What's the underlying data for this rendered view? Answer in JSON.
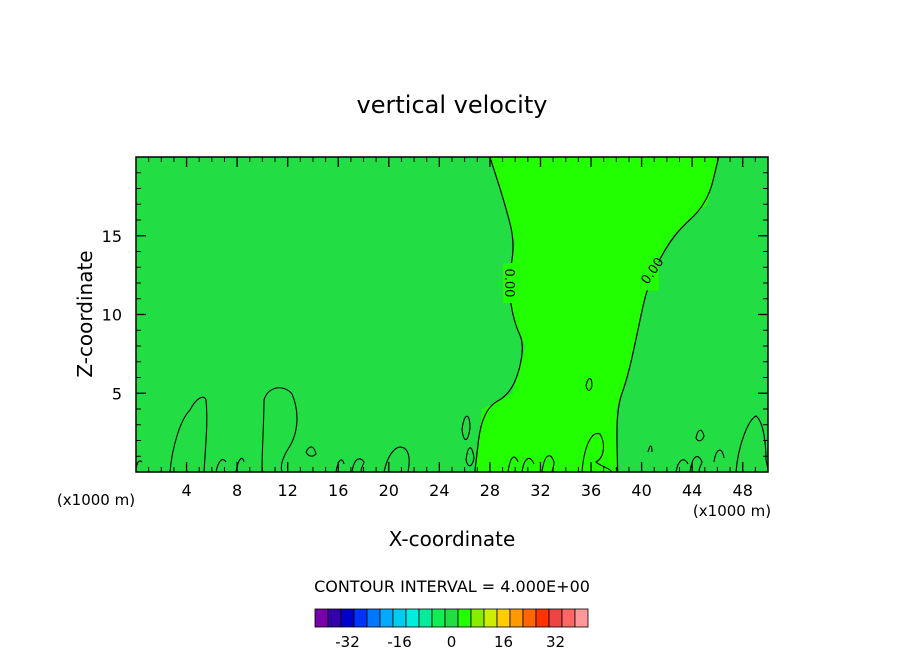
{
  "chart_data": {
    "type": "contour",
    "title": "vertical velocity",
    "xlabel": "X-coordinate",
    "ylabel": "Z-coordinate",
    "x_unit_label": "(x1000 m)",
    "z_unit_label": "(x1000 m)",
    "xlim": [
      0,
      50
    ],
    "ylim": [
      0,
      20
    ],
    "x_ticks": [
      4,
      8,
      12,
      16,
      20,
      24,
      28,
      32,
      36,
      40,
      44,
      48
    ],
    "x_tick_labels": [
      "4",
      "8",
      "12",
      "16",
      "20",
      "24",
      "28",
      "32",
      "36",
      "40",
      "44",
      "48"
    ],
    "y_ticks": [
      5,
      10,
      15
    ],
    "y_tick_labels": [
      "5",
      "10",
      "15"
    ],
    "contour_labels": [
      {
        "text": "0.00",
        "x": 29.6,
        "z": 12.0
      },
      {
        "text": "0.00",
        "x": 40.8,
        "z": 12.8
      }
    ],
    "background_fill": "#22dd44",
    "positive_region_fill": "#22ff00",
    "zero_contour": [
      {
        "x": 28.0,
        "z": 20.0
      },
      {
        "x": 29.2,
        "z": 17.0
      },
      {
        "x": 30.0,
        "z": 14.5
      },
      {
        "x": 29.4,
        "z": 12.0
      },
      {
        "x": 29.9,
        "z": 9.5
      },
      {
        "x": 30.8,
        "z": 8.0
      },
      {
        "x": 29.8,
        "z": 5.0
      },
      {
        "x": 27.4,
        "z": 4.0
      },
      {
        "x": 26.8,
        "z": 0.0
      }
    ],
    "right_contour": [
      {
        "x": 46.1,
        "z": 20.0
      },
      {
        "x": 45.2,
        "z": 17.0
      },
      {
        "x": 42.4,
        "z": 15.0
      },
      {
        "x": 40.5,
        "z": 12.0
      },
      {
        "x": 39.7,
        "z": 9.0
      },
      {
        "x": 38.9,
        "z": 6.0
      },
      {
        "x": 38.0,
        "z": 4.0
      },
      {
        "x": 38.1,
        "z": 0.0
      }
    ],
    "contour_interval_text": "CONTOUR INTERVAL = 4.000E+00",
    "colorbar": {
      "colors": [
        "#7700aa",
        "#3300aa",
        "#0000cc",
        "#0033ff",
        "#0077ff",
        "#00aaff",
        "#00ccee",
        "#00eedd",
        "#00ee99",
        "#11ee55",
        "#22dd44",
        "#22ff00",
        "#88ee00",
        "#ccee00",
        "#ffcc00",
        "#ff9900",
        "#ff6600",
        "#ff3300",
        "#ee4444",
        "#ff6666",
        "#ff9999"
      ],
      "tick_labels": [
        "-32",
        "-16",
        "0",
        "16",
        "32"
      ]
    }
  }
}
